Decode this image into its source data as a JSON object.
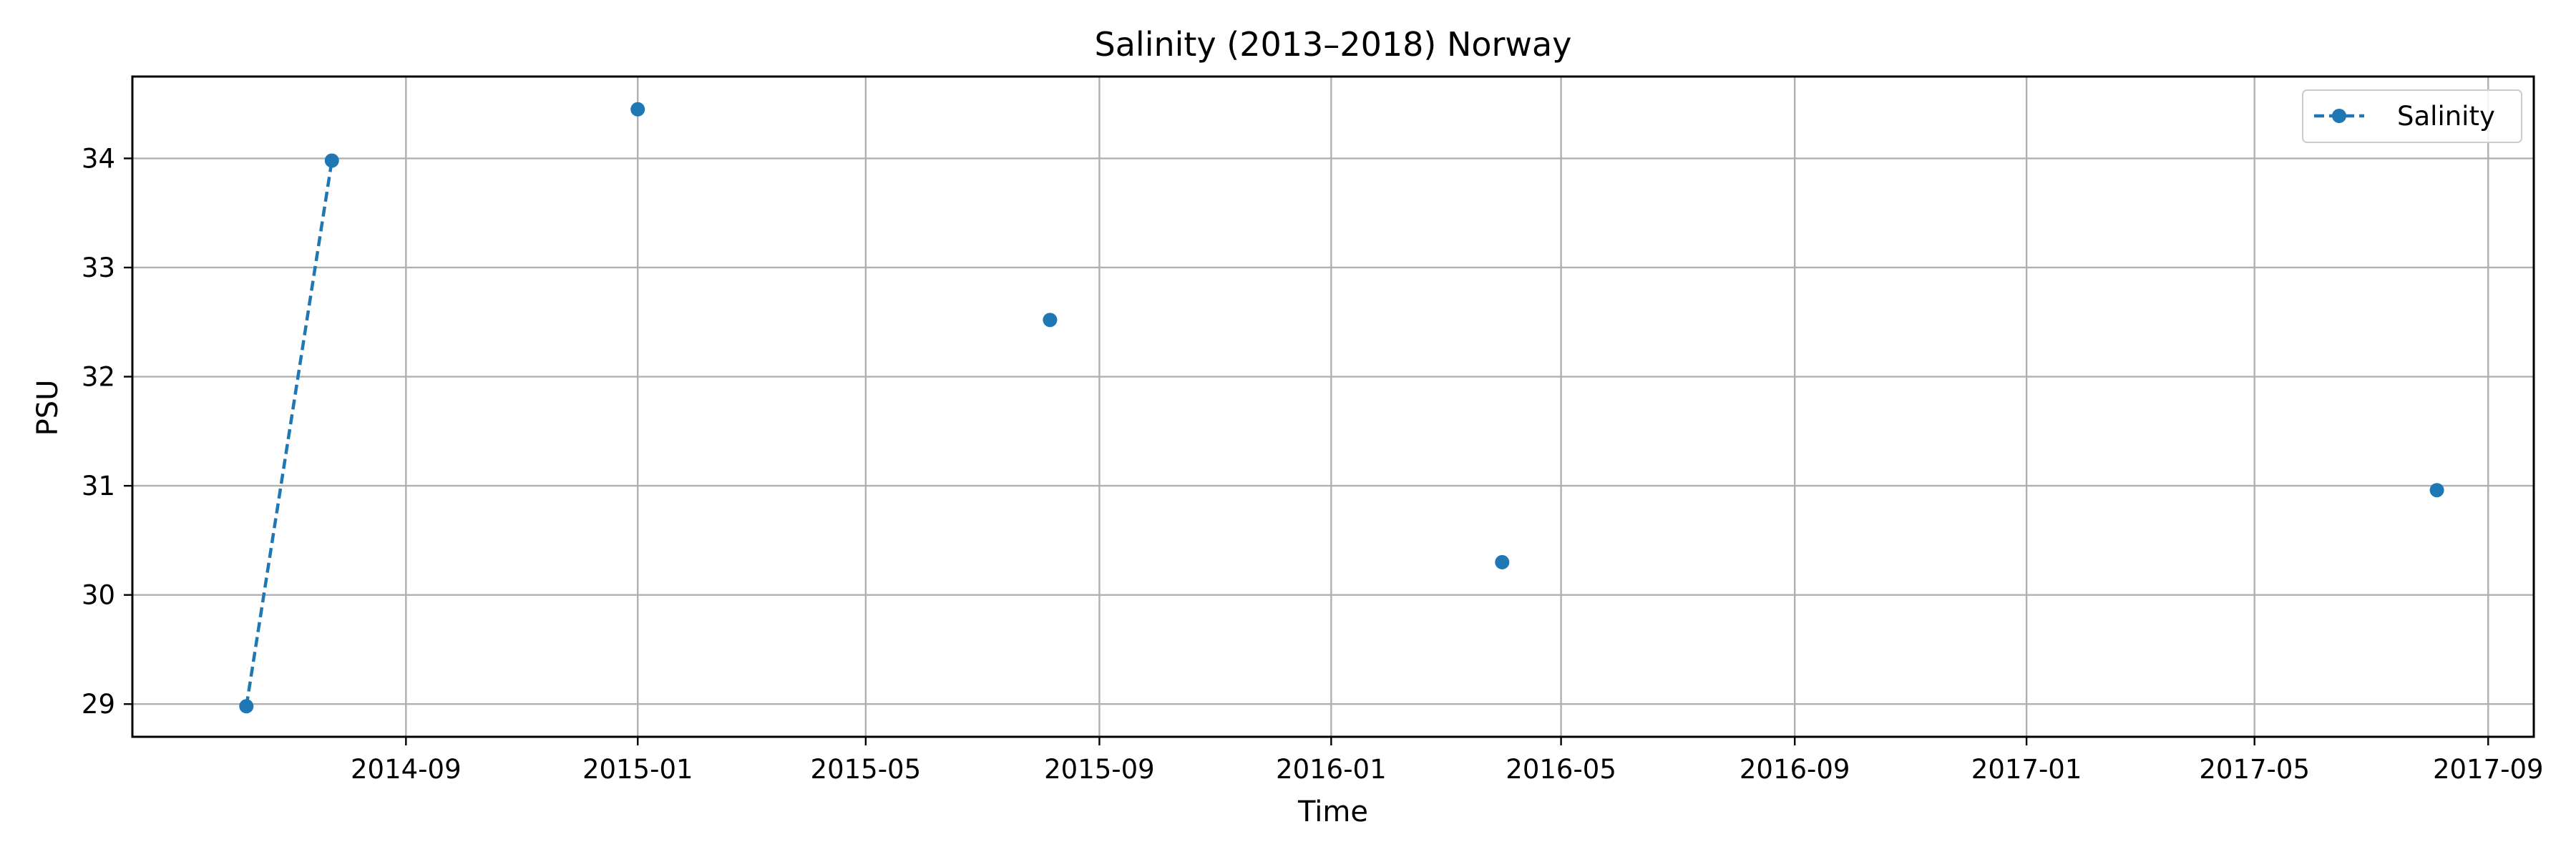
{
  "chart_data": {
    "type": "line",
    "title": "Salinity (2013–2018) Norway",
    "xlabel": "Time",
    "ylabel": "PSU",
    "x_axis_type": "date",
    "xlim": [
      "2014-04-10",
      "2017-09-25"
    ],
    "ylim": [
      28.7,
      34.75
    ],
    "x_ticks": [
      "2014-09",
      "2015-01",
      "2015-05",
      "2015-09",
      "2016-01",
      "2016-05",
      "2016-09",
      "2017-01",
      "2017-05",
      "2017-09"
    ],
    "y_ticks": [
      29,
      30,
      31,
      32,
      33,
      34
    ],
    "grid": true,
    "legend_position": "top-right",
    "series": [
      {
        "name": "Salinity",
        "color": "#1f77b4",
        "line_style": "dashed",
        "marker": "circle",
        "points": [
          {
            "x": "2014-06-09",
            "y": 28.98
          },
          {
            "x": "2014-07-24",
            "y": 33.98
          },
          {
            "x": null,
            "y": null
          },
          {
            "x": "2015-01-01",
            "y": 34.45
          },
          {
            "x": null,
            "y": null
          },
          {
            "x": "2015-08-06",
            "y": 32.52
          },
          {
            "x": null,
            "y": null
          },
          {
            "x": "2016-03-31",
            "y": 30.3
          },
          {
            "x": null,
            "y": null
          },
          {
            "x": "2017-08-05",
            "y": 30.96
          }
        ]
      }
    ]
  }
}
